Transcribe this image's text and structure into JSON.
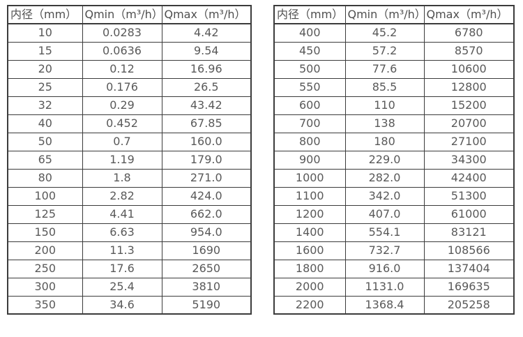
{
  "page": {
    "background_color": "#ffffff",
    "border_color": "#3b3b3b",
    "text_color": "#595959"
  },
  "tables": [
    {
      "name": "flow-rate-table-small-diameters",
      "headers": [
        "内径（mm）",
        "Qmin（m³/h）",
        "Qmax（m³/h）"
      ],
      "rows": [
        [
          "10",
          "0.0283",
          "4.42"
        ],
        [
          "15",
          "0.0636",
          "9.54"
        ],
        [
          "20",
          "0.12",
          "16.96"
        ],
        [
          "25",
          "0.176",
          "26.5"
        ],
        [
          "32",
          "0.29",
          "43.42"
        ],
        [
          "40",
          "0.452",
          "67.85"
        ],
        [
          "50",
          "0.7",
          "160.0"
        ],
        [
          "65",
          "1.19",
          "179.0"
        ],
        [
          "80",
          "1.8",
          "271.0"
        ],
        [
          "100",
          "2.82",
          "424.0"
        ],
        [
          "125",
          "4.41",
          "662.0"
        ],
        [
          "150",
          "6.63",
          "954.0"
        ],
        [
          "200",
          "11.3",
          "1690"
        ],
        [
          "250",
          "17.6",
          "2650"
        ],
        [
          "300",
          "25.4",
          "3810"
        ],
        [
          "350",
          "34.6",
          "5190"
        ]
      ]
    },
    {
      "name": "flow-rate-table-large-diameters",
      "headers": [
        "内径（mm）",
        "Qmin（m³/h）",
        "Qmax（m³/h）"
      ],
      "rows": [
        [
          "400",
          "45.2",
          "6780"
        ],
        [
          "450",
          "57.2",
          "8570"
        ],
        [
          "500",
          "77.6",
          "10600"
        ],
        [
          "550",
          "85.5",
          "12800"
        ],
        [
          "600",
          "110",
          "15200"
        ],
        [
          "700",
          "138",
          "20700"
        ],
        [
          "800",
          "180",
          "27100"
        ],
        [
          "900",
          "229.0",
          "34300"
        ],
        [
          "1000",
          "282.0",
          "42400"
        ],
        [
          "1100",
          "342.0",
          "51300"
        ],
        [
          "1200",
          "407.0",
          "61000"
        ],
        [
          "1400",
          "554.1",
          "83121"
        ],
        [
          "1600",
          "732.7",
          "108566"
        ],
        [
          "1800",
          "916.0",
          "137404"
        ],
        [
          "2000",
          "1131.0",
          "169635"
        ],
        [
          "2200",
          "1368.4",
          "205258"
        ]
      ]
    }
  ]
}
